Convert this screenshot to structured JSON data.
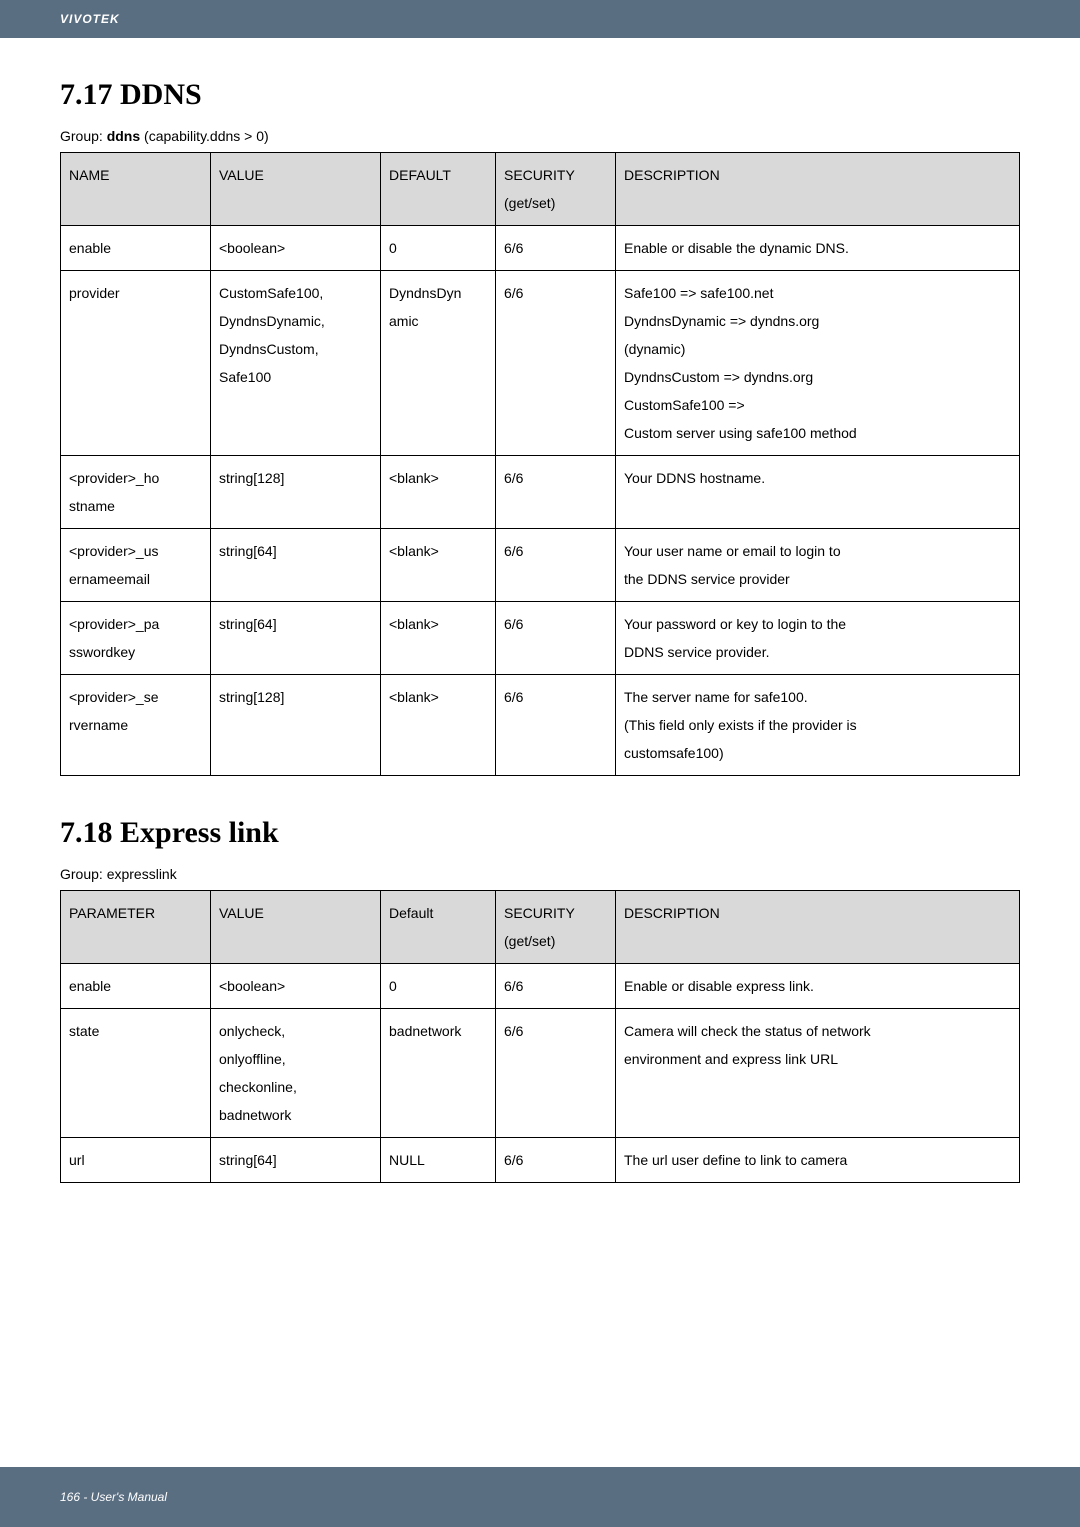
{
  "header": {
    "brand": "VIVOTEK"
  },
  "section1": {
    "title": "7.17 DDNS",
    "group_prefix": "Group: ",
    "group_bold": "ddns",
    "group_suffix": " (capability.ddns > 0)",
    "headers": [
      "NAME",
      "VALUE",
      "DEFAULT",
      "SECURITY (get/set)",
      "DESCRIPTION"
    ],
    "rows": [
      {
        "name": "enable",
        "value": "<boolean>",
        "default": "0",
        "security": "6/6",
        "description": "Enable or disable the dynamic DNS."
      },
      {
        "name": "provider",
        "value": "CustomSafe100, DyndnsDynamic, DyndnsCustom, Safe100",
        "default": "DyndnsDynamic",
        "security": "6/6",
        "description": "Safe100 => safe100.net\nDyndnsDynamic => dyndns.org (dynamic)\nDyndnsCustom => dyndns.org\nCustomSafe100 =>\nCustom server using safe100 method"
      },
      {
        "name": "<provider>_hostname",
        "value": "string[128]",
        "default": "<blank>",
        "security": "6/6",
        "description": "Your DDNS hostname."
      },
      {
        "name": "<provider>_usernameemail",
        "value": "string[64]",
        "default": "<blank>",
        "security": "6/6",
        "description": "Your user name or email to login to the DDNS service provider"
      },
      {
        "name": "<provider>_passwordkey",
        "value": "string[64]",
        "default": "<blank>",
        "security": "6/6",
        "description": "Your password or key to login to the DDNS service provider."
      },
      {
        "name": "<provider>_servername",
        "value": "string[128]",
        "default": "<blank>",
        "security": "6/6",
        "description": "The server name for safe100.\n(This field only exists if the provider is customsafe100)"
      }
    ]
  },
  "section2": {
    "title": "7.18 Express link",
    "group_line": "Group: expresslink",
    "headers": [
      "PARAMETER",
      "VALUE",
      "Default",
      "SECURITY (get/set)",
      "DESCRIPTION"
    ],
    "rows": [
      {
        "name": "enable",
        "value": "<boolean>",
        "default": "0",
        "security": "6/6",
        "description": "Enable or disable express link."
      },
      {
        "name": "state",
        "value": "onlycheck, onlyoffline, checkonline, badnetwork",
        "default": "badnetwork",
        "security": "6/6",
        "description": "Camera will check the status of network environment and express link URL"
      },
      {
        "name": "url",
        "value": "string[64]",
        "default": "NULL",
        "security": "6/6",
        "description": "The url user define to link to camera"
      }
    ]
  },
  "footer": {
    "page": "166 - User's Manual"
  }
}
